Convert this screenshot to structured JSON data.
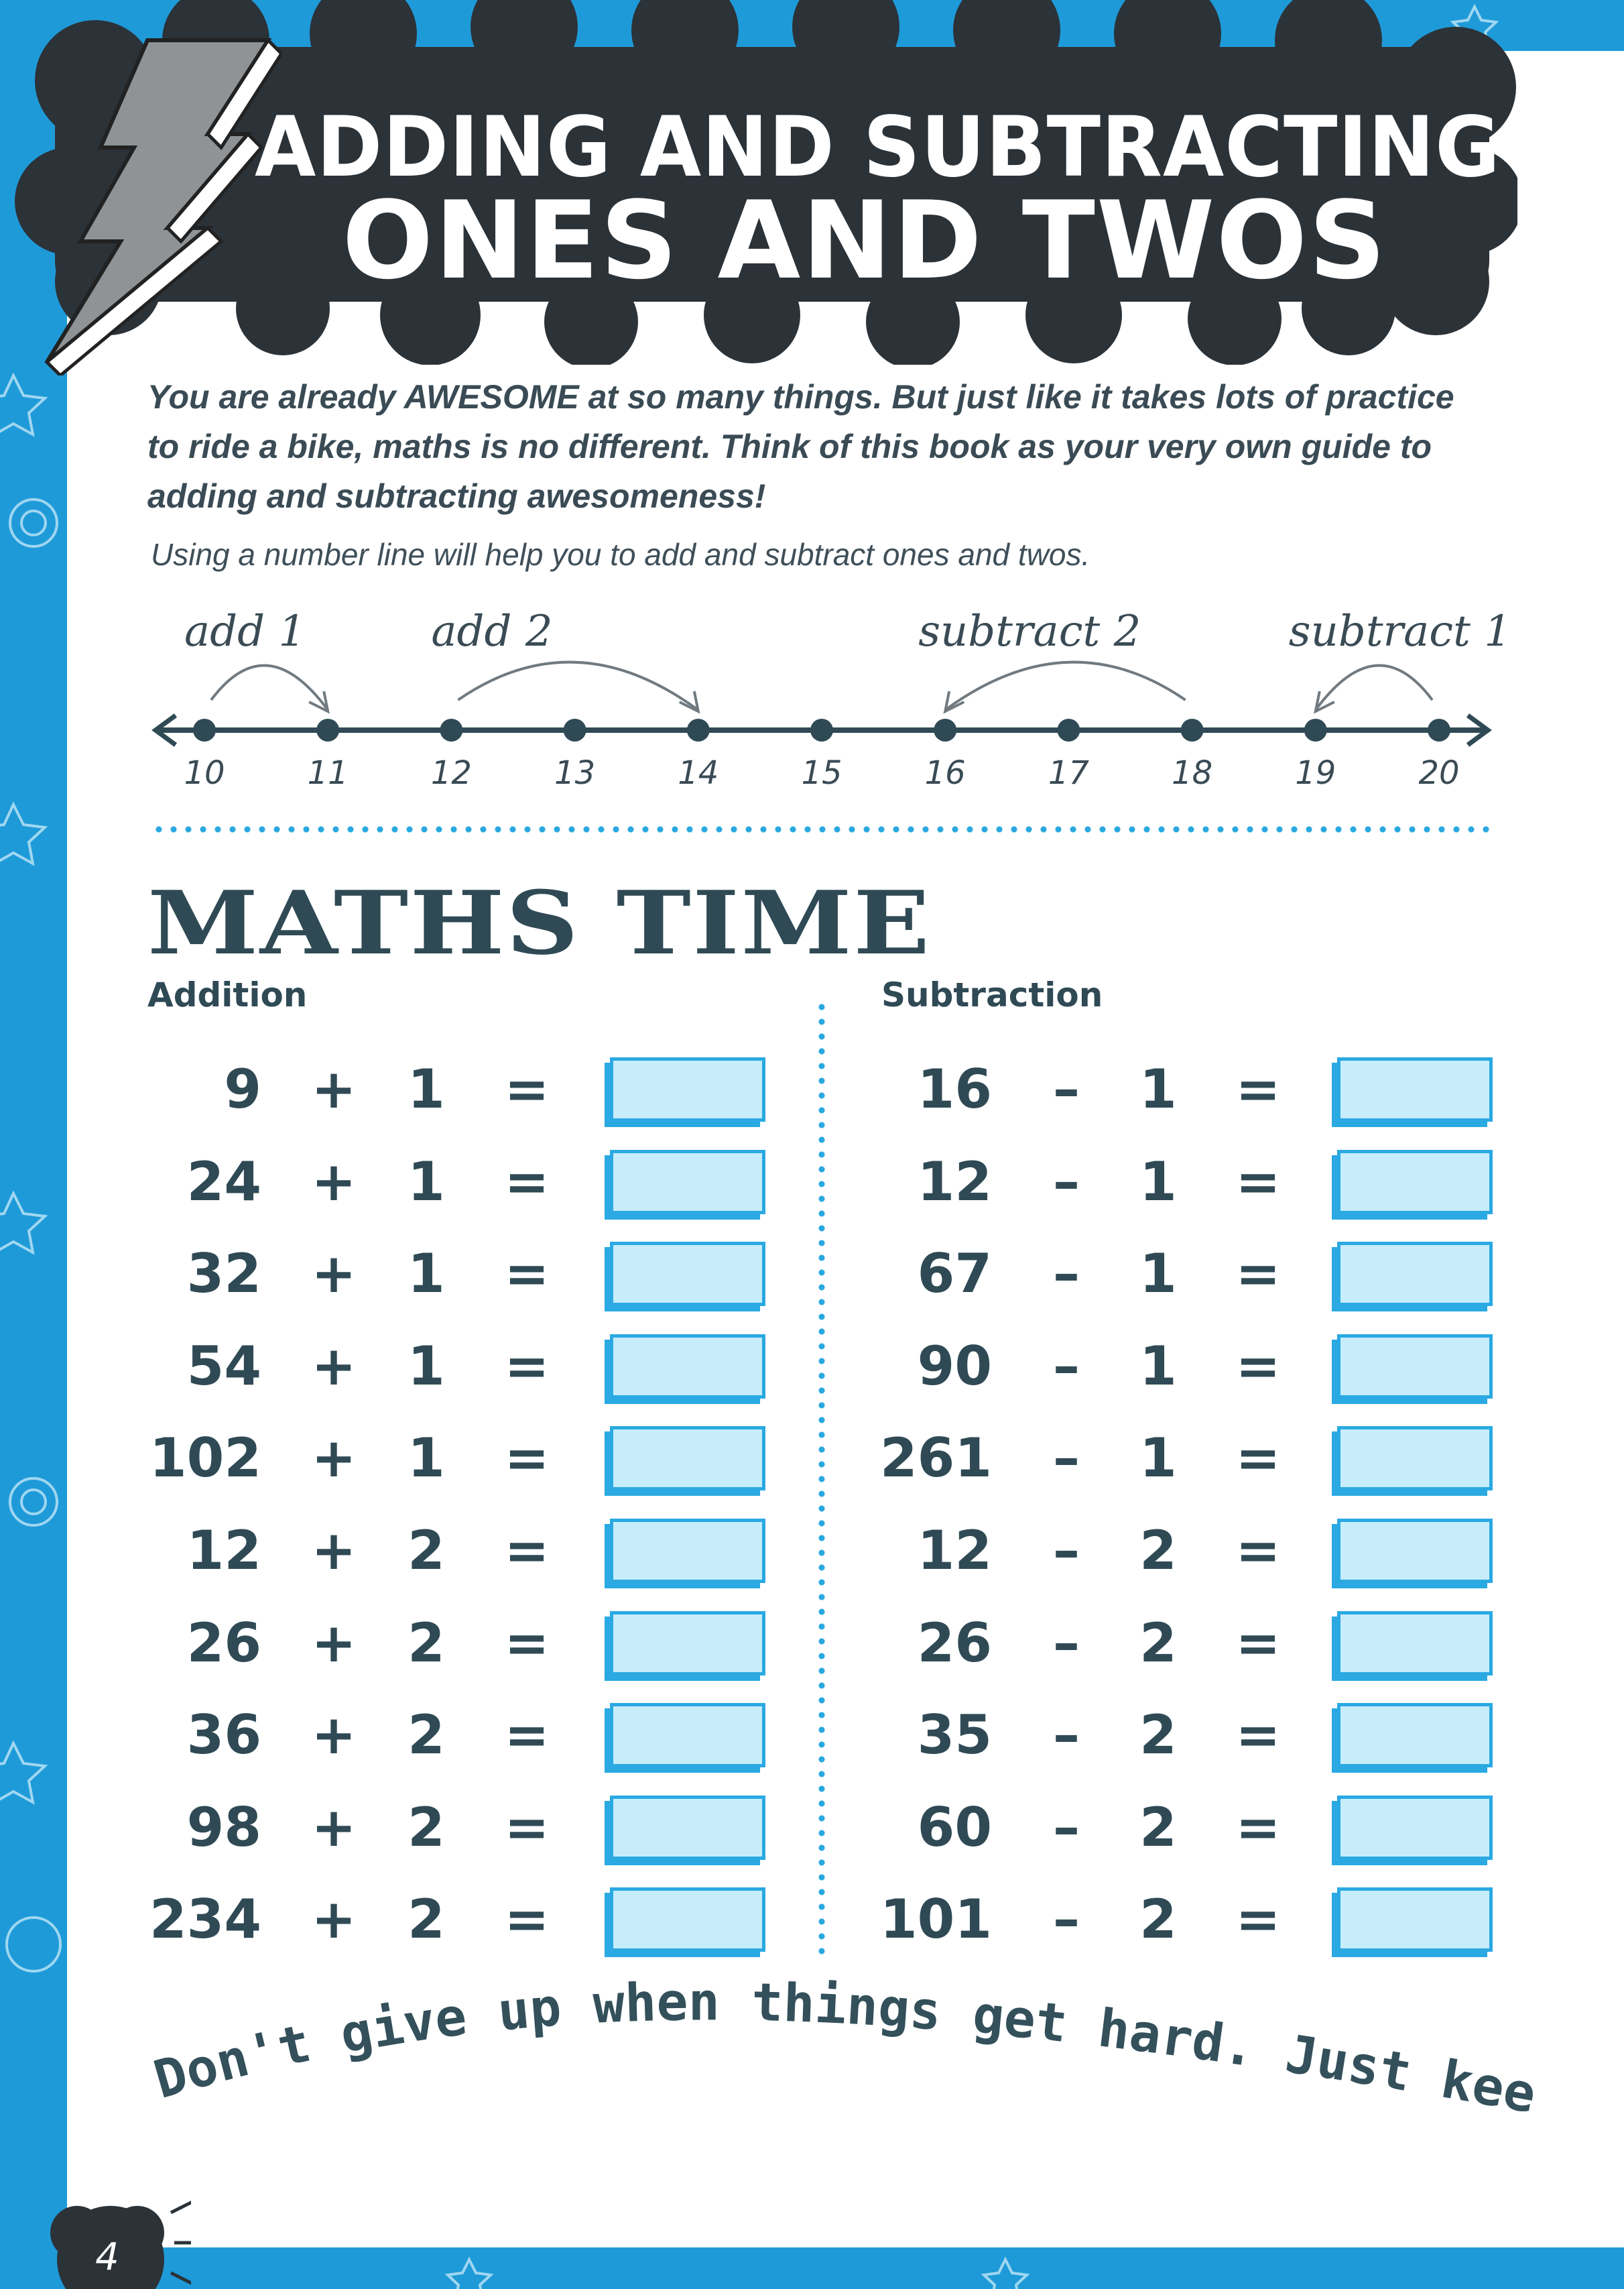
{
  "colors": {
    "border_blue": "#1f9ad8",
    "ink": "#2f4a55",
    "answer_box_fill": "#c7edfb",
    "answer_box_border": "#2aa9e2",
    "title_cloud": "#2b3238"
  },
  "title": {
    "line1": "ADDING AND SUBTRACTING",
    "line2": "ONES AND TWOS",
    "icon": "lightning-bolt-icon"
  },
  "intro": "You are already AWESOME at so many things. But just like it takes lots of practice to ride a bike, maths is no different. Think of this book as your very own guide to adding and subtracting awesomeness!",
  "subtext": "Using a number line will help you to add and subtract ones and twos.",
  "number_line": {
    "numbers": [
      "10",
      "11",
      "12",
      "13",
      "14",
      "15",
      "16",
      "17",
      "18",
      "19",
      "20"
    ],
    "labels": [
      {
        "text": "add 1",
        "from": 10,
        "to": 11
      },
      {
        "text": "add 2",
        "from": 12,
        "to": 14
      },
      {
        "text": "subtract 2",
        "from": 18,
        "to": 16
      },
      {
        "text": "subtract 1",
        "from": 20,
        "to": 19
      }
    ]
  },
  "section_title": "MATHS TIME",
  "addition": {
    "heading": "Addition",
    "rows": [
      {
        "a": "9",
        "op": "+",
        "b": "1",
        "eq": "="
      },
      {
        "a": "24",
        "op": "+",
        "b": "1",
        "eq": "="
      },
      {
        "a": "32",
        "op": "+",
        "b": "1",
        "eq": "="
      },
      {
        "a": "54",
        "op": "+",
        "b": "1",
        "eq": "="
      },
      {
        "a": "102",
        "op": "+",
        "b": "1",
        "eq": "="
      },
      {
        "a": "12",
        "op": "+",
        "b": "2",
        "eq": "="
      },
      {
        "a": "26",
        "op": "+",
        "b": "2",
        "eq": "="
      },
      {
        "a": "36",
        "op": "+",
        "b": "2",
        "eq": "="
      },
      {
        "a": "98",
        "op": "+",
        "b": "2",
        "eq": "="
      },
      {
        "a": "234",
        "op": "+",
        "b": "2",
        "eq": "="
      }
    ]
  },
  "subtraction": {
    "heading": "Subtraction",
    "rows": [
      {
        "a": "16",
        "op": "–",
        "b": "1",
        "eq": "="
      },
      {
        "a": "12",
        "op": "–",
        "b": "1",
        "eq": "="
      },
      {
        "a": "67",
        "op": "–",
        "b": "1",
        "eq": "="
      },
      {
        "a": "90",
        "op": "–",
        "b": "1",
        "eq": "="
      },
      {
        "a": "261",
        "op": "–",
        "b": "1",
        "eq": "="
      },
      {
        "a": "12",
        "op": "–",
        "b": "2",
        "eq": "="
      },
      {
        "a": "26",
        "op": "–",
        "b": "2",
        "eq": "="
      },
      {
        "a": "35",
        "op": "–",
        "b": "2",
        "eq": "="
      },
      {
        "a": "60",
        "op": "–",
        "b": "2",
        "eq": "="
      },
      {
        "a": "101",
        "op": "–",
        "b": "2",
        "eq": "="
      }
    ]
  },
  "quote": "Don't give up when things get hard. Just keep on trying.",
  "page_number": "4"
}
